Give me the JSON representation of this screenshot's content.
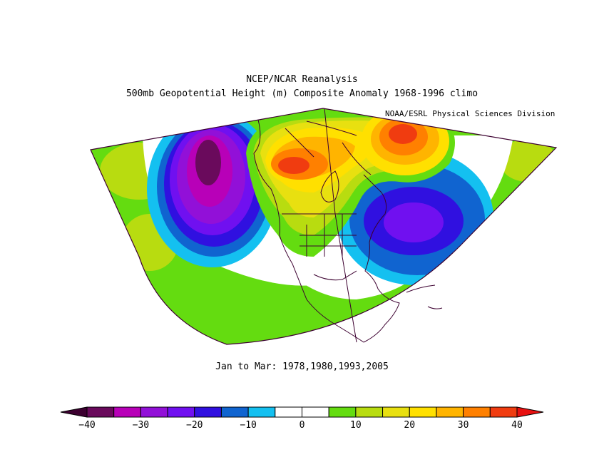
{
  "header": {
    "title": "NCEP/NCAR Reanalysis",
    "subtitle": "500mb Geopotential Height (m) Composite Anomaly 1968-1996 climo",
    "credit": "NOAA/ESRL Physical Sciences Division"
  },
  "map": {
    "projection": "polar sector (North America)",
    "period_label": "Jan to Mar: 1978,1980,1993,2005"
  },
  "colorbar": {
    "tick_labels": [
      "-40",
      "-30",
      "-20",
      "-10",
      "0",
      "10",
      "20",
      "30",
      "40"
    ],
    "bins": [
      {
        "min": -40,
        "max": -35,
        "color": "#6a0a5c"
      },
      {
        "min": -35,
        "max": -30,
        "color": "#b800b8"
      },
      {
        "min": -30,
        "max": -25,
        "color": "#9210d8"
      },
      {
        "min": -25,
        "max": -20,
        "color": "#7010f0"
      },
      {
        "min": -20,
        "max": -15,
        "color": "#3010e0"
      },
      {
        "min": -15,
        "max": -10,
        "color": "#1064d0"
      },
      {
        "min": -10,
        "max": -5,
        "color": "#14c0f0"
      },
      {
        "min": -5,
        "max": 0,
        "color": "#ffffff"
      },
      {
        "min": 0,
        "max": 5,
        "color": "#ffffff"
      },
      {
        "min": 5,
        "max": 10,
        "color": "#64dc10"
      },
      {
        "min": 10,
        "max": 15,
        "color": "#b8dc10"
      },
      {
        "min": 15,
        "max": 20,
        "color": "#e8e010"
      },
      {
        "min": 20,
        "max": 25,
        "color": "#ffe000"
      },
      {
        "min": 25,
        "max": 30,
        "color": "#ffb400"
      },
      {
        "min": 30,
        "max": 35,
        "color": "#ff8000"
      },
      {
        "min": 35,
        "max": 40,
        "color": "#f03c10"
      }
    ],
    "under_color": "#3c0030",
    "over_color": "#e81010"
  }
}
